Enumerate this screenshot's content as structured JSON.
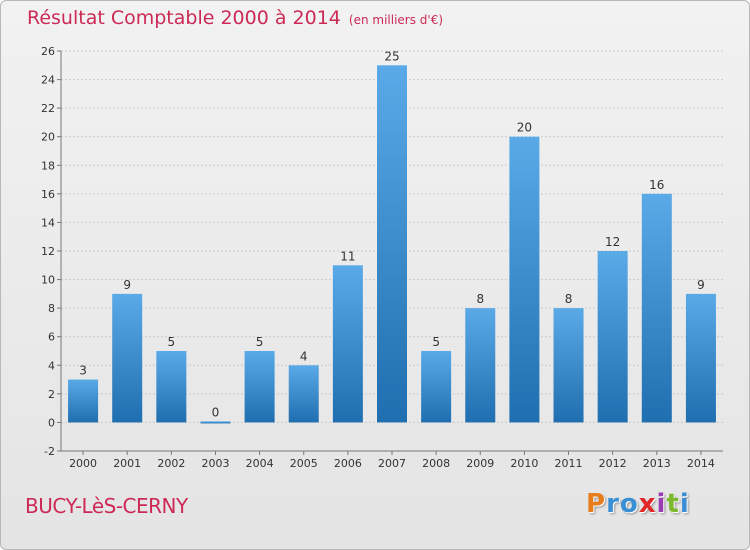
{
  "header": {
    "title": "Résultat Comptable 2000 à 2014",
    "subtitle": "(en milliers d'€)"
  },
  "footer": {
    "commune": "BUCY-LèS-CERNY",
    "logo_letters": [
      "P",
      "r",
      "o",
      "x",
      "i",
      "t",
      "i"
    ],
    "logo_colors": [
      "#e87d1e",
      "#3a8fd4",
      "#3a8fd4",
      "#e02828",
      "#9a3db3",
      "#7cb82f",
      "#3a8fd4"
    ]
  },
  "colors": {
    "accent": "#cc2a55",
    "bar_light": "#5aaae8",
    "bar_dark": "#1f6fb0"
  },
  "chart_data": {
    "type": "bar",
    "categories": [
      "2000",
      "2001",
      "2002",
      "2003",
      "2004",
      "2005",
      "2006",
      "2007",
      "2008",
      "2009",
      "2010",
      "2011",
      "2012",
      "2013",
      "2014"
    ],
    "values": [
      3,
      9,
      5,
      0,
      5,
      4,
      11,
      25,
      5,
      8,
      20,
      8,
      12,
      16,
      9
    ],
    "data_labels": [
      "3",
      "9",
      "5",
      "0",
      "5",
      "4",
      "11",
      "25",
      "5",
      "8",
      "20",
      "8",
      "12",
      "16",
      "9"
    ],
    "ylim": [
      -2,
      26
    ],
    "yticks": [
      -2,
      0,
      2,
      4,
      6,
      8,
      10,
      12,
      14,
      16,
      18,
      20,
      22,
      24,
      26
    ],
    "grid": true,
    "legend": "none"
  }
}
